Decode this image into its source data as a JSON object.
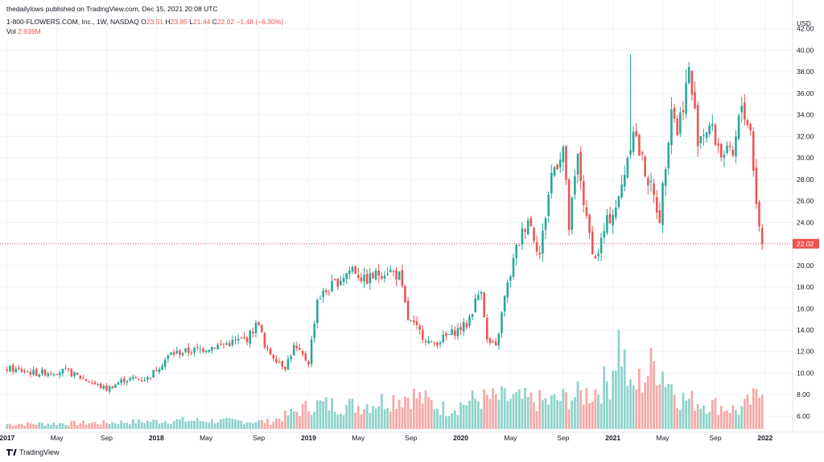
{
  "header": {
    "publisher": "thedailylows published on TradingView.com, Dec 15, 2021 20:08 UTC",
    "symbol": "1-800-FLOWERS.COM, Inc., 1W, NASDAQ",
    "o_label": "O",
    "o_val": "23.51",
    "h_label": "H",
    "h_val": "23.85",
    "l_label": "L",
    "l_val": "21.44",
    "c_label": "C",
    "c_val": "22.02",
    "change": "−1.48 (−6.30%)",
    "vol_label": "Vol",
    "vol_val": "2.939M"
  },
  "footer": {
    "brand": "TradingView"
  },
  "colors": {
    "up": "#26a69a",
    "down": "#ef5350",
    "vol_up": "#8fd3cc",
    "vol_down": "#f5a9a7",
    "grid": "#f0f3fa",
    "text": "#131722"
  },
  "chart_data": {
    "type": "candlestick",
    "currency": "USD",
    "last_price": "22.02",
    "yticks": [
      "6.00",
      "8.00",
      "10.00",
      "12.00",
      "14.00",
      "16.00",
      "18.00",
      "20.00",
      "22.00",
      "24.00",
      "26.00",
      "28.00",
      "30.00",
      "32.00",
      "34.00",
      "36.00",
      "38.00",
      "40.00",
      "42.00"
    ],
    "xticks": [
      {
        "label": "2017",
        "i": 0
      },
      {
        "label": "May",
        "i": 17
      },
      {
        "label": "Sep",
        "i": 34
      },
      {
        "label": "2018",
        "i": 51
      },
      {
        "label": "May",
        "i": 68
      },
      {
        "label": "Sep",
        "i": 86
      },
      {
        "label": "2019",
        "i": 103
      },
      {
        "label": "May",
        "i": 120
      },
      {
        "label": "Sep",
        "i": 138
      },
      {
        "label": "2020",
        "i": 155
      },
      {
        "label": "May",
        "i": 172
      },
      {
        "label": "Sep",
        "i": 190
      },
      {
        "label": "2021",
        "i": 207
      },
      {
        "label": "May",
        "i": 224
      },
      {
        "label": "Sep",
        "i": 242
      },
      {
        "label": "2022",
        "i": 259
      }
    ],
    "weekly_close_keypoints": [
      [
        0,
        10.4
      ],
      [
        10,
        10.0
      ],
      [
        20,
        10.2
      ],
      [
        34,
        8.5
      ],
      [
        40,
        9.4
      ],
      [
        48,
        9.5
      ],
      [
        56,
        11.8
      ],
      [
        66,
        12.2
      ],
      [
        76,
        12.8
      ],
      [
        82,
        13.2
      ],
      [
        86,
        14.8
      ],
      [
        88,
        12.3
      ],
      [
        95,
        10.6
      ],
      [
        98,
        12.4
      ],
      [
        103,
        11.0
      ],
      [
        106,
        16.9
      ],
      [
        112,
        18.3
      ],
      [
        118,
        19.8
      ],
      [
        122,
        18.6
      ],
      [
        130,
        19.6
      ],
      [
        134,
        19.0
      ],
      [
        137,
        15.0
      ],
      [
        145,
        12.6
      ],
      [
        150,
        13.4
      ],
      [
        157,
        14.5
      ],
      [
        162,
        18.0
      ],
      [
        164,
        13.0
      ],
      [
        167,
        12.3
      ],
      [
        170,
        17.0
      ],
      [
        174,
        21.5
      ],
      [
        178,
        24.5
      ],
      [
        182,
        21.0
      ],
      [
        186,
        28.5
      ],
      [
        190,
        31.0
      ],
      [
        192,
        23.5
      ],
      [
        195,
        30.0
      ],
      [
        198,
        24.0
      ],
      [
        201,
        20.5
      ],
      [
        205,
        24.0
      ],
      [
        209,
        26.0
      ],
      [
        214,
        33.0
      ],
      [
        216,
        30.5
      ],
      [
        219,
        28.0
      ],
      [
        223,
        24.5
      ],
      [
        227,
        35.0
      ],
      [
        229,
        32.5
      ],
      [
        233,
        38.0
      ],
      [
        236,
        32.0
      ],
      [
        240,
        33.0
      ],
      [
        244,
        30.5
      ],
      [
        248,
        30.0
      ],
      [
        251,
        35.0
      ],
      [
        254,
        32.5
      ],
      [
        256,
        26.0
      ],
      [
        257,
        23.5
      ],
      [
        258,
        22.02
      ]
    ],
    "volume_keypoints": [
      [
        0,
        0.4
      ],
      [
        30,
        0.5
      ],
      [
        60,
        0.7
      ],
      [
        90,
        0.6
      ],
      [
        105,
        2.0
      ],
      [
        120,
        1.9
      ],
      [
        138,
        2.8
      ],
      [
        150,
        1.6
      ],
      [
        160,
        2.4
      ],
      [
        170,
        2.5
      ],
      [
        185,
        2.2
      ],
      [
        200,
        3.0
      ],
      [
        206,
        4.0
      ],
      [
        209,
        7.8
      ],
      [
        213,
        3.0
      ],
      [
        222,
        5.5
      ],
      [
        230,
        2.5
      ],
      [
        245,
        1.8
      ],
      [
        250,
        1.5
      ],
      [
        258,
        2.94
      ]
    ],
    "volume_axis_ticks": [
      "6.00",
      "8.00",
      "10.00",
      "12.00",
      "14.00"
    ],
    "weeks": 259,
    "ylim": [
      4.8,
      42.8
    ]
  }
}
